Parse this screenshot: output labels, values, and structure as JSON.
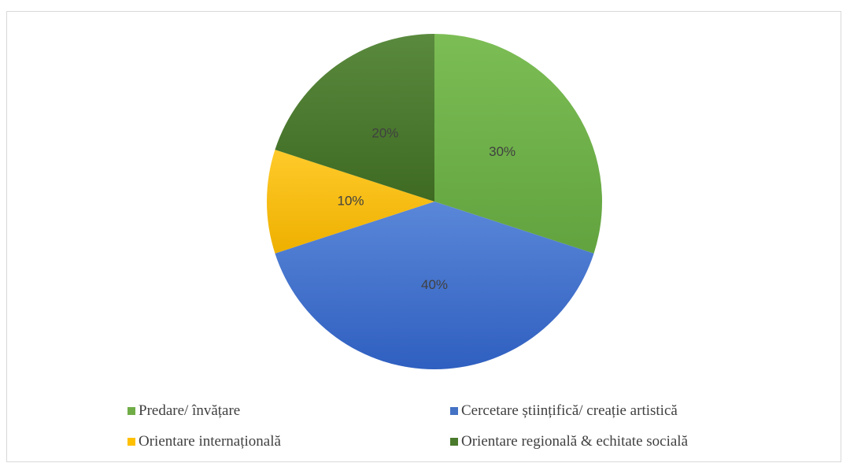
{
  "chart_data": {
    "type": "pie",
    "title": "",
    "categories": [
      "Predare/ învățare",
      "Cercetare științifică/ creație artistică",
      "Orientare internațională",
      "Orientare regională & echitate socială"
    ],
    "values": [
      30,
      40,
      10,
      20
    ],
    "value_labels": [
      "30%",
      "40%",
      "10%",
      "20%"
    ],
    "colors": [
      "#6ab04c",
      "#4472c4",
      "#ffc000",
      "#4a7a2c"
    ],
    "legend_placement": "bottom"
  }
}
